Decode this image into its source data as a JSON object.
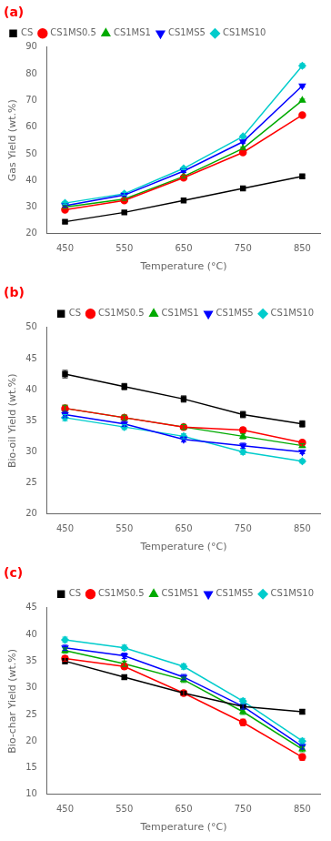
{
  "chart_data": [
    {
      "type": "line",
      "annotations": [
        {
          "text": "(a)",
          "color": "#ff0000"
        }
      ],
      "x": [
        450,
        550,
        650,
        750,
        850
      ],
      "xlabel": "Temperature (°C)",
      "ylabel": "Gas Yield (wt.%)",
      "xlim": [
        420,
        880
      ],
      "xticks": [
        450,
        550,
        650,
        750,
        850
      ],
      "ylim": [
        20,
        90
      ],
      "yticks": [
        20,
        30,
        40,
        50,
        60,
        70,
        80,
        90
      ],
      "grid": false,
      "legend": "upper left",
      "series": [
        {
          "name": "CS",
          "color": "#000000",
          "marker": "square",
          "values": [
            24.5,
            28.0,
            32.5,
            37.0,
            41.5
          ],
          "errors": [
            0.5,
            0.4,
            0.5,
            0.4,
            0.5
          ]
        },
        {
          "name": "CS1MS0.5",
          "color": "#ff0000",
          "marker": "circle",
          "values": [
            29.0,
            32.5,
            41.0,
            50.5,
            64.5
          ],
          "errors": [
            0.5,
            0.5,
            0.5,
            0.5,
            0.5
          ]
        },
        {
          "name": "CS1MS1",
          "color": "#00aa00",
          "marker": "triangle-up",
          "values": [
            30.0,
            33.0,
            41.5,
            52.0,
            70.0
          ],
          "errors": [
            0.5,
            0.5,
            0.5,
            0.5,
            0.5
          ]
        },
        {
          "name": "CS1MS5",
          "color": "#0000ff",
          "marker": "triangle-down",
          "values": [
            30.5,
            34.5,
            43.5,
            54.5,
            75.5
          ],
          "errors": [
            0.5,
            0.5,
            0.5,
            0.5,
            0.5
          ]
        },
        {
          "name": "CS1MS10",
          "color": "#00cccc",
          "marker": "diamond",
          "values": [
            31.5,
            35.0,
            44.5,
            56.5,
            83.0
          ],
          "errors": [
            0.5,
            0.5,
            0.5,
            0.5,
            0.8
          ]
        }
      ]
    },
    {
      "type": "line",
      "annotations": [
        {
          "text": "(b)",
          "color": "#ff0000"
        }
      ],
      "x": [
        450,
        550,
        650,
        750,
        850
      ],
      "xlabel": "Temperature (°C)",
      "ylabel": "Bio-oil Yield (wt.%)",
      "xlim": [
        420,
        880
      ],
      "xticks": [
        450,
        550,
        650,
        750,
        850
      ],
      "ylim": [
        20,
        50
      ],
      "yticks": [
        20,
        25,
        30,
        35,
        40,
        45,
        50
      ],
      "grid": false,
      "legend": "upper right",
      "series": [
        {
          "name": "CS",
          "color": "#000000",
          "marker": "square",
          "values": [
            42.5,
            40.5,
            38.5,
            36.0,
            34.5
          ],
          "errors": [
            0.6,
            0.5,
            0.5,
            0.5,
            0.5
          ]
        },
        {
          "name": "CS1MS0.5",
          "color": "#ff0000",
          "marker": "circle",
          "values": [
            37.0,
            35.5,
            34.0,
            33.5,
            31.5
          ],
          "errors": [
            0.5,
            0.4,
            0.4,
            0.4,
            0.3
          ]
        },
        {
          "name": "CS1MS1",
          "color": "#00aa00",
          "marker": "triangle-up",
          "values": [
            37.0,
            35.5,
            34.0,
            32.5,
            31.0
          ],
          "errors": [
            0.5,
            0.4,
            0.4,
            0.4,
            0.3
          ]
        },
        {
          "name": "CS1MS5",
          "color": "#0000ff",
          "marker": "triangle-down",
          "values": [
            36.0,
            34.5,
            32.0,
            31.0,
            30.0
          ],
          "errors": [
            0.5,
            0.4,
            0.4,
            0.4,
            0.3
          ]
        },
        {
          "name": "CS1MS10",
          "color": "#00cccc",
          "marker": "diamond",
          "values": [
            35.5,
            34.0,
            32.5,
            30.0,
            28.5
          ],
          "errors": [
            0.5,
            0.4,
            0.4,
            0.4,
            0.3
          ]
        }
      ]
    },
    {
      "type": "line",
      "annotations": [
        {
          "text": "(c)",
          "color": "#ff0000"
        }
      ],
      "x": [
        450,
        550,
        650,
        750,
        850
      ],
      "xlabel": "Temperature (°C)",
      "ylabel": "Bio-char Yield (wt.%)",
      "xlim": [
        420,
        880
      ],
      "xticks": [
        450,
        550,
        650,
        750,
        850
      ],
      "ylim": [
        10,
        45
      ],
      "yticks": [
        10,
        15,
        20,
        25,
        30,
        35,
        40,
        45
      ],
      "grid": false,
      "legend": "upper right",
      "series": [
        {
          "name": "CS",
          "color": "#000000",
          "marker": "square",
          "values": [
            35.0,
            32.0,
            29.0,
            26.5,
            25.5
          ],
          "errors": [
            0.5,
            0.4,
            0.5,
            0.4,
            0.4
          ]
        },
        {
          "name": "CS1MS0.5",
          "color": "#ff0000",
          "marker": "circle",
          "values": [
            35.5,
            34.0,
            29.0,
            23.5,
            17.0
          ],
          "errors": [
            0.5,
            0.5,
            0.5,
            0.6,
            0.6
          ]
        },
        {
          "name": "CS1MS1",
          "color": "#00aa00",
          "marker": "triangle-up",
          "values": [
            37.0,
            34.5,
            31.5,
            25.5,
            18.5
          ],
          "errors": [
            0.5,
            0.5,
            0.5,
            0.5,
            0.5
          ]
        },
        {
          "name": "CS1MS5",
          "color": "#0000ff",
          "marker": "triangle-down",
          "values": [
            37.5,
            36.0,
            32.0,
            26.5,
            19.0
          ],
          "errors": [
            0.5,
            0.5,
            0.5,
            0.5,
            0.5
          ]
        },
        {
          "name": "CS1MS10",
          "color": "#00cccc",
          "marker": "diamond",
          "values": [
            39.0,
            37.5,
            34.0,
            27.5,
            20.0
          ],
          "errors": [
            0.5,
            0.5,
            0.5,
            0.5,
            0.5
          ]
        }
      ]
    }
  ]
}
